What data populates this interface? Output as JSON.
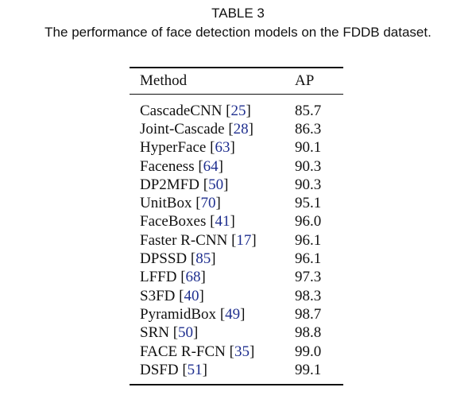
{
  "caption": {
    "label": "TABLE 3",
    "text": "The performance of face detection models on the FDDB dataset."
  },
  "table": {
    "headers": {
      "method": "Method",
      "ap": "AP"
    },
    "rows": [
      {
        "method": "CascadeCNN",
        "ref": "25",
        "ap": "85.7"
      },
      {
        "method": "Joint-Cascade",
        "ref": "28",
        "ap": "86.3"
      },
      {
        "method": "HyperFace",
        "ref": "63",
        "ap": "90.1"
      },
      {
        "method": "Faceness",
        "ref": "64",
        "ap": "90.3"
      },
      {
        "method": "DP2MFD",
        "ref": "50",
        "ap": "90.3"
      },
      {
        "method": "UnitBox",
        "ref": "70",
        "ap": "95.1"
      },
      {
        "method": "FaceBoxes",
        "ref": "41",
        "ap": "96.0"
      },
      {
        "method": "Faster R-CNN",
        "ref": "17",
        "ap": "96.1"
      },
      {
        "method": "DPSSD",
        "ref": "85",
        "ap": "96.1"
      },
      {
        "method": "LFFD",
        "ref": "68",
        "ap": "97.3"
      },
      {
        "method": "S3FD",
        "ref": "40",
        "ap": "98.3"
      },
      {
        "method": "PyramidBox",
        "ref": "49",
        "ap": "98.7"
      },
      {
        "method": "SRN",
        "ref": "50",
        "ap": "98.8"
      },
      {
        "method": "FACE R-FCN",
        "ref": "35",
        "ap": "99.0"
      },
      {
        "method": "DSFD",
        "ref": "51",
        "ap": "99.1"
      }
    ]
  },
  "colors": {
    "reference_link": "#1f2f8f",
    "text": "#111111"
  }
}
